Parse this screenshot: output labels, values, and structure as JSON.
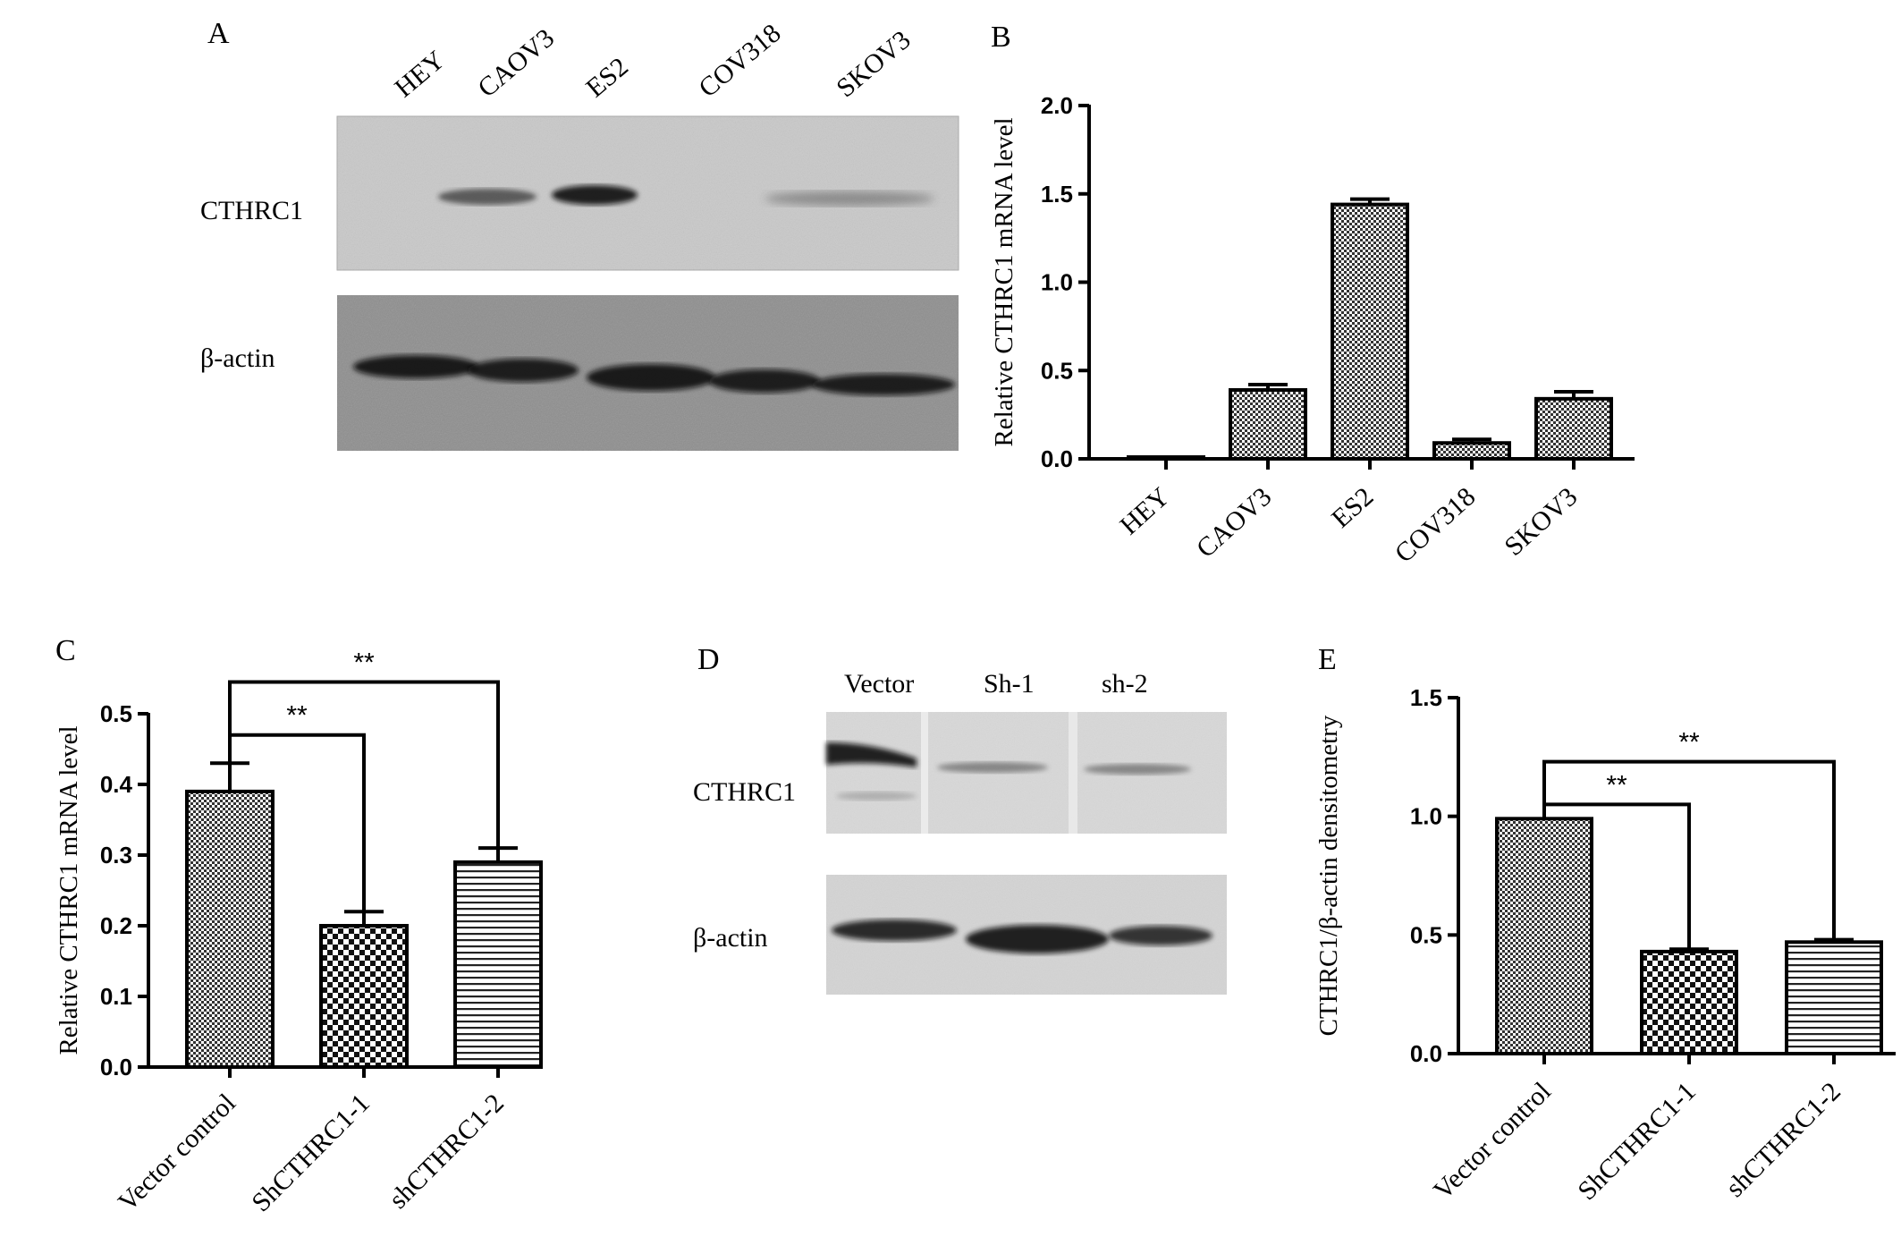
{
  "figure": {
    "panels": [
      "A",
      "B",
      "C",
      "D",
      "E"
    ]
  },
  "western_blots": [
    {
      "panel": "A",
      "lanes": [
        "HEY",
        "CAOV3",
        "ES2",
        "COV318",
        "SKOV3"
      ],
      "rows": [
        {
          "label": "CTHRC1",
          "band_intensity": [
            0.0,
            0.6,
            0.9,
            0.05,
            0.35
          ]
        },
        {
          "label": "β-actin",
          "band_intensity": [
            0.9,
            0.9,
            0.9,
            0.9,
            0.9
          ]
        }
      ]
    },
    {
      "panel": "D",
      "lanes": [
        "Vector",
        "Sh-1",
        "sh-2"
      ],
      "rows": [
        {
          "label": "CTHRC1",
          "band_intensity": [
            0.9,
            0.3,
            0.35
          ]
        },
        {
          "label": "β-actin",
          "band_intensity": [
            0.85,
            0.9,
            0.8
          ]
        }
      ]
    }
  ],
  "chart_data": [
    {
      "panel": "B",
      "type": "bar",
      "categories": [
        "HEY",
        "CAOV3",
        "ES2",
        "COV318",
        "SKOV3"
      ],
      "values": [
        0.01,
        0.39,
        1.44,
        0.09,
        0.34
      ],
      "errors": [
        0.0,
        0.03,
        0.03,
        0.02,
        0.04
      ],
      "ylabel": "Relative CTHRC1 mRNA level",
      "ylim": [
        0,
        2.0
      ],
      "yticks": [
        "0.0",
        "0.5",
        "1.0",
        "1.5",
        "2.0"
      ],
      "pattern": [
        "checker",
        "checker",
        "checker",
        "checker",
        "checker"
      ]
    },
    {
      "panel": "C",
      "type": "bar",
      "categories": [
        "Vector control",
        "ShCTHRC1-1",
        "shCTHRC1-2"
      ],
      "values": [
        0.39,
        0.2,
        0.29
      ],
      "errors": [
        0.04,
        0.02,
        0.02
      ],
      "ylabel": "Relative CTHRC1 mRNA level",
      "ylim": [
        0,
        0.5
      ],
      "yticks": [
        "0.0",
        "0.1",
        "0.2",
        "0.3",
        "0.4",
        "0.5"
      ],
      "pattern": [
        "checker",
        "bigchecker",
        "hlines"
      ],
      "significance": [
        {
          "from": 0,
          "to": 1,
          "y": 0.47,
          "label": "**"
        },
        {
          "from": 0,
          "to": 2,
          "y": 0.545,
          "label": "**"
        }
      ]
    },
    {
      "panel": "E",
      "type": "bar",
      "categories": [
        "Vector control",
        "ShCTHRC1-1",
        "shCTHRC1-2"
      ],
      "values": [
        0.99,
        0.43,
        0.47
      ],
      "errors": [
        0.0,
        0.01,
        0.01
      ],
      "ylabel": "CTHRC1/β-actin densitometry",
      "ylim": [
        0,
        1.5
      ],
      "yticks": [
        "0.0",
        "0.5",
        "1.0",
        "1.5"
      ],
      "pattern": [
        "checker",
        "bigchecker",
        "hlines"
      ],
      "significance": [
        {
          "from": 0,
          "to": 1,
          "y": 1.05,
          "label": "**"
        },
        {
          "from": 0,
          "to": 2,
          "y": 1.23,
          "label": "**"
        }
      ]
    }
  ]
}
